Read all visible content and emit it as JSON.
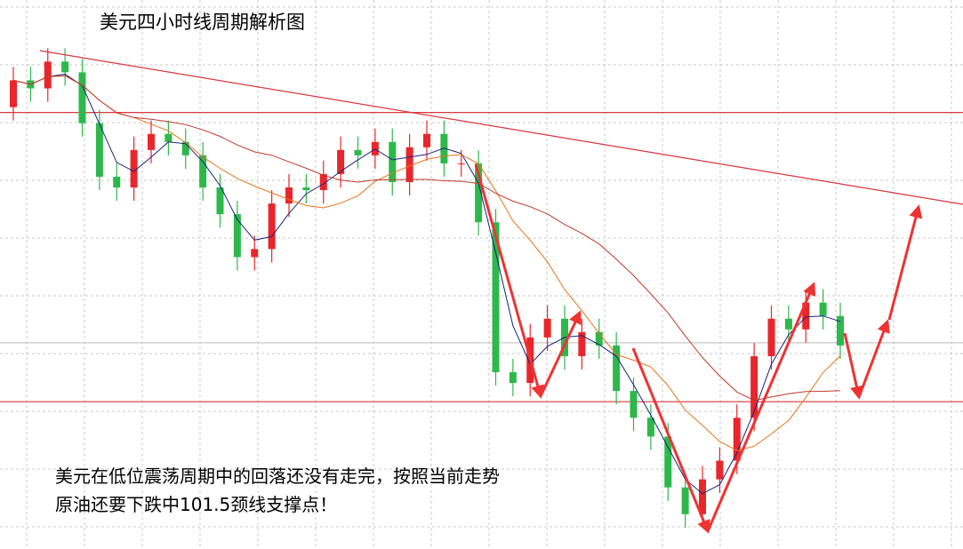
{
  "chart_data": {
    "type": "candlestick",
    "title": "美元四小时线周期解析图",
    "annotation": [
      "美元在低位震荡周期中的回落还没有走完，按照当前走势",
      "原油还要下跌中101.5颈线支撑点！"
    ],
    "categories": [
      null,
      null,
      null,
      null,
      null,
      null,
      null,
      null,
      null,
      null,
      null,
      null,
      null,
      null,
      null,
      null,
      null,
      null,
      null,
      null,
      null,
      null,
      null,
      null,
      null,
      null,
      null,
      null,
      null,
      null,
      null,
      null,
      null,
      null,
      null,
      null,
      null,
      null,
      null,
      null,
      null,
      null,
      null,
      null,
      null,
      null,
      null,
      null,
      null
    ],
    "open": [
      102.6,
      102.7,
      102.67,
      102.77,
      102.73,
      102.54,
      102.34,
      102.3,
      102.44,
      102.5,
      102.47,
      102.42,
      102.3,
      102.2,
      102.04,
      102.07,
      102.24,
      102.3,
      102.29,
      102.35,
      102.44,
      102.42,
      102.47,
      102.32,
      102.45,
      102.5,
      102.39,
      102.39,
      102.17,
      101.61,
      101.57,
      101.74,
      101.81,
      101.67,
      101.76,
      101.71,
      101.54,
      101.44,
      101.37,
      101.18,
      101.08,
      101.21,
      101.28,
      101.44,
      101.67,
      101.81,
      101.77,
      101.87,
      101.82
    ],
    "high": [
      102.75,
      102.75,
      102.82,
      102.82,
      102.78,
      102.59,
      102.39,
      102.49,
      102.55,
      102.55,
      102.52,
      102.47,
      102.35,
      102.25,
      102.12,
      102.29,
      102.35,
      102.35,
      102.4,
      102.49,
      102.49,
      102.52,
      102.52,
      102.5,
      102.55,
      102.55,
      102.44,
      102.44,
      102.22,
      101.66,
      101.79,
      101.86,
      101.86,
      101.81,
      101.81,
      101.76,
      101.59,
      101.49,
      101.42,
      101.23,
      101.26,
      101.33,
      101.49,
      101.72,
      101.86,
      101.86,
      101.92,
      101.92,
      101.87
    ],
    "low": [
      102.55,
      102.62,
      102.62,
      102.68,
      102.49,
      102.29,
      102.25,
      102.25,
      102.39,
      102.42,
      102.37,
      102.25,
      102.15,
      101.99,
      101.99,
      102.02,
      102.19,
      102.24,
      102.24,
      102.3,
      102.37,
      102.37,
      102.27,
      102.27,
      102.4,
      102.34,
      102.34,
      102.12,
      101.56,
      101.52,
      101.52,
      101.69,
      101.62,
      101.62,
      101.66,
      101.49,
      101.39,
      101.32,
      101.13,
      101.03,
      101.03,
      101.16,
      101.23,
      101.39,
      101.62,
      101.72,
      101.72,
      101.77,
      101.66
    ],
    "close": [
      102.7,
      102.67,
      102.77,
      102.73,
      102.54,
      102.34,
      102.3,
      102.44,
      102.5,
      102.47,
      102.42,
      102.3,
      102.2,
      102.04,
      102.07,
      102.24,
      102.3,
      102.29,
      102.35,
      102.44,
      102.42,
      102.47,
      102.32,
      102.45,
      102.5,
      102.39,
      102.39,
      102.17,
      101.61,
      101.57,
      101.74,
      101.81,
      101.67,
      101.76,
      101.71,
      101.54,
      101.44,
      101.37,
      101.18,
      101.08,
      101.21,
      101.28,
      101.44,
      101.67,
      101.81,
      101.77,
      101.87,
      101.82,
      101.71
    ],
    "up_color": "#e8262b",
    "down_color": "#2db84b",
    "ylim": [
      100.95,
      103.0
    ],
    "hlines": [
      {
        "value": 102.58,
        "color": "#d9363e"
      },
      {
        "value": 101.72,
        "color": "#c8c8c8"
      },
      {
        "value": 101.5,
        "color": "#d9363e"
      }
    ]
  }
}
